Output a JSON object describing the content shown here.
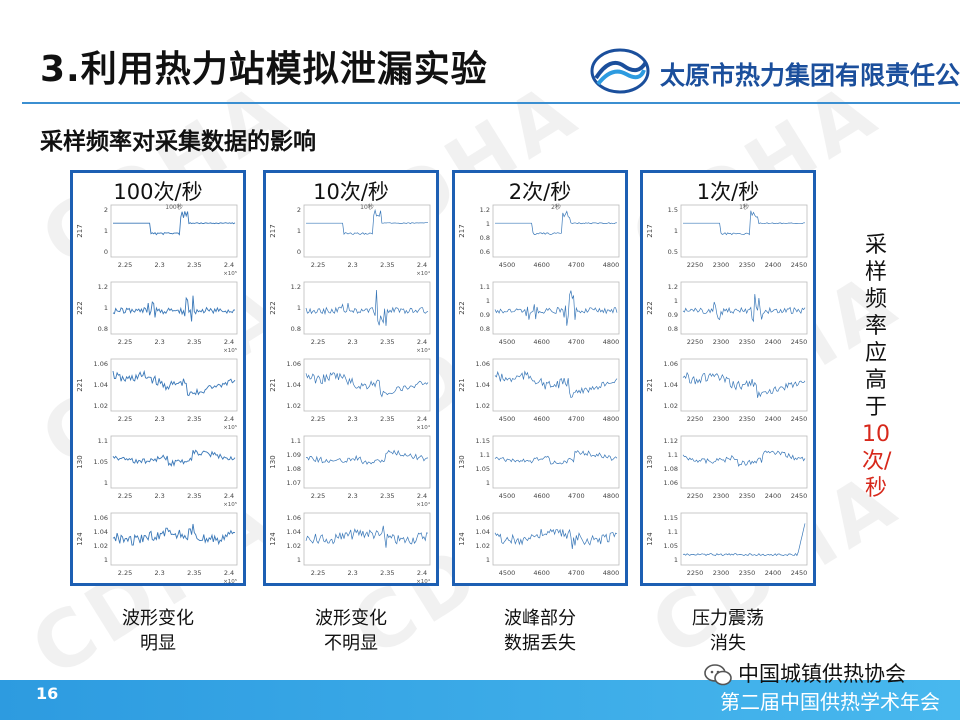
{
  "header": {
    "title": "3.利用热力站模拟泄漏实验",
    "company": "太原市热力集团有限责任公司"
  },
  "subtitle": "采样频率对采集数据的影响",
  "watermark": "CDHA",
  "panels": [
    {
      "label": "100次/秒",
      "plot_title": "100秒",
      "caption_line1": "波形变化",
      "caption_line2": "明显",
      "x_ticks": [
        "2.25",
        "2.3",
        "2.35",
        "2.4"
      ],
      "x_exponent": "×10⁵",
      "rows": [
        {
          "ylabel": "217",
          "y_ticks": [
            "2",
            "1",
            "0"
          ],
          "style": "step"
        },
        {
          "ylabel": "222",
          "y_ticks": [
            "1.2",
            "1",
            "0.8"
          ],
          "style": "spike"
        },
        {
          "ylabel": "221",
          "y_ticks": [
            "1.06",
            "1.04",
            "1.02"
          ],
          "style": "noisy"
        },
        {
          "ylabel": "130",
          "y_ticks": [
            "1.1",
            "1.05",
            "1"
          ],
          "style": "wavy"
        },
        {
          "ylabel": "124",
          "y_ticks": [
            "1.06",
            "1.04",
            "1.02",
            "1"
          ],
          "style": "noisy2"
        }
      ]
    },
    {
      "label": "10次/秒",
      "plot_title": "10秒",
      "caption_line1": "波形变化",
      "caption_line2": "不明显",
      "x_ticks": [
        "2.25",
        "2.3",
        "2.35",
        "2.4"
      ],
      "x_exponent": "×10⁴",
      "rows": [
        {
          "ylabel": "217",
          "y_ticks": [
            "2",
            "1",
            "0"
          ],
          "style": "step"
        },
        {
          "ylabel": "222",
          "y_ticks": [
            "1.2",
            "1",
            "0.8"
          ],
          "style": "spike"
        },
        {
          "ylabel": "221",
          "y_ticks": [
            "1.06",
            "1.04",
            "1.02"
          ],
          "style": "noisy"
        },
        {
          "ylabel": "130",
          "y_ticks": [
            "1.1",
            "1.09",
            "1.08",
            "1.07"
          ],
          "style": "wavy"
        },
        {
          "ylabel": "124",
          "y_ticks": [
            "1.06",
            "1.04",
            "1.02",
            "1"
          ],
          "style": "noisy2"
        }
      ]
    },
    {
      "label": "2次/秒",
      "plot_title": "2秒",
      "caption_line1": "波峰部分",
      "caption_line2": "数据丢失",
      "x_ticks": [
        "4500",
        "4600",
        "4700",
        "4800"
      ],
      "x_exponent": "",
      "rows": [
        {
          "ylabel": "217",
          "y_ticks": [
            "1.2",
            "1",
            "0.8",
            "0.6"
          ],
          "style": "step"
        },
        {
          "ylabel": "222",
          "y_ticks": [
            "1.1",
            "1",
            "0.9",
            "0.8"
          ],
          "style": "spike"
        },
        {
          "ylabel": "221",
          "y_ticks": [
            "1.06",
            "1.04",
            "1.02"
          ],
          "style": "noisy"
        },
        {
          "ylabel": "130",
          "y_ticks": [
            "1.15",
            "1.1",
            "1.05",
            "1"
          ],
          "style": "wavy"
        },
        {
          "ylabel": "124",
          "y_ticks": [
            "1.06",
            "1.04",
            "1.02",
            "1"
          ],
          "style": "noisy2"
        }
      ]
    },
    {
      "label": "1次/秒",
      "plot_title": "1秒",
      "caption_line1": "压力震荡",
      "caption_line2": "消失",
      "x_ticks": [
        "2250",
        "2300",
        "2350",
        "2400",
        "2450"
      ],
      "x_exponent": "",
      "rows": [
        {
          "ylabel": "217",
          "y_ticks": [
            "1.5",
            "1",
            "0.5"
          ],
          "style": "step"
        },
        {
          "ylabel": "222",
          "y_ticks": [
            "1.2",
            "1",
            "0.9",
            "0.8"
          ],
          "style": "spike"
        },
        {
          "ylabel": "221",
          "y_ticks": [
            "1.06",
            "1.04",
            "1.02"
          ],
          "style": "noisy"
        },
        {
          "ylabel": "130",
          "y_ticks": [
            "1.12",
            "1.1",
            "1.08",
            "1.06"
          ],
          "style": "wavy"
        },
        {
          "ylabel": "124",
          "y_ticks": [
            "1.15",
            "1.1",
            "1.05",
            "1"
          ],
          "style": "tail"
        }
      ]
    }
  ],
  "side_note": [
    "采",
    "样",
    "频",
    "率",
    "应",
    "高",
    "于",
    "10",
    "次/",
    "秒"
  ],
  "side_note_red_from": 7,
  "footer": {
    "page_number": "16",
    "association": "中国城镇供热协会",
    "conference": "第二届中国供热学术年会"
  },
  "colors": {
    "panel_border": "#1d5fb3",
    "trace": "#3a78b8",
    "accent_red": "#d7281b",
    "footer": "#2d9be0"
  }
}
